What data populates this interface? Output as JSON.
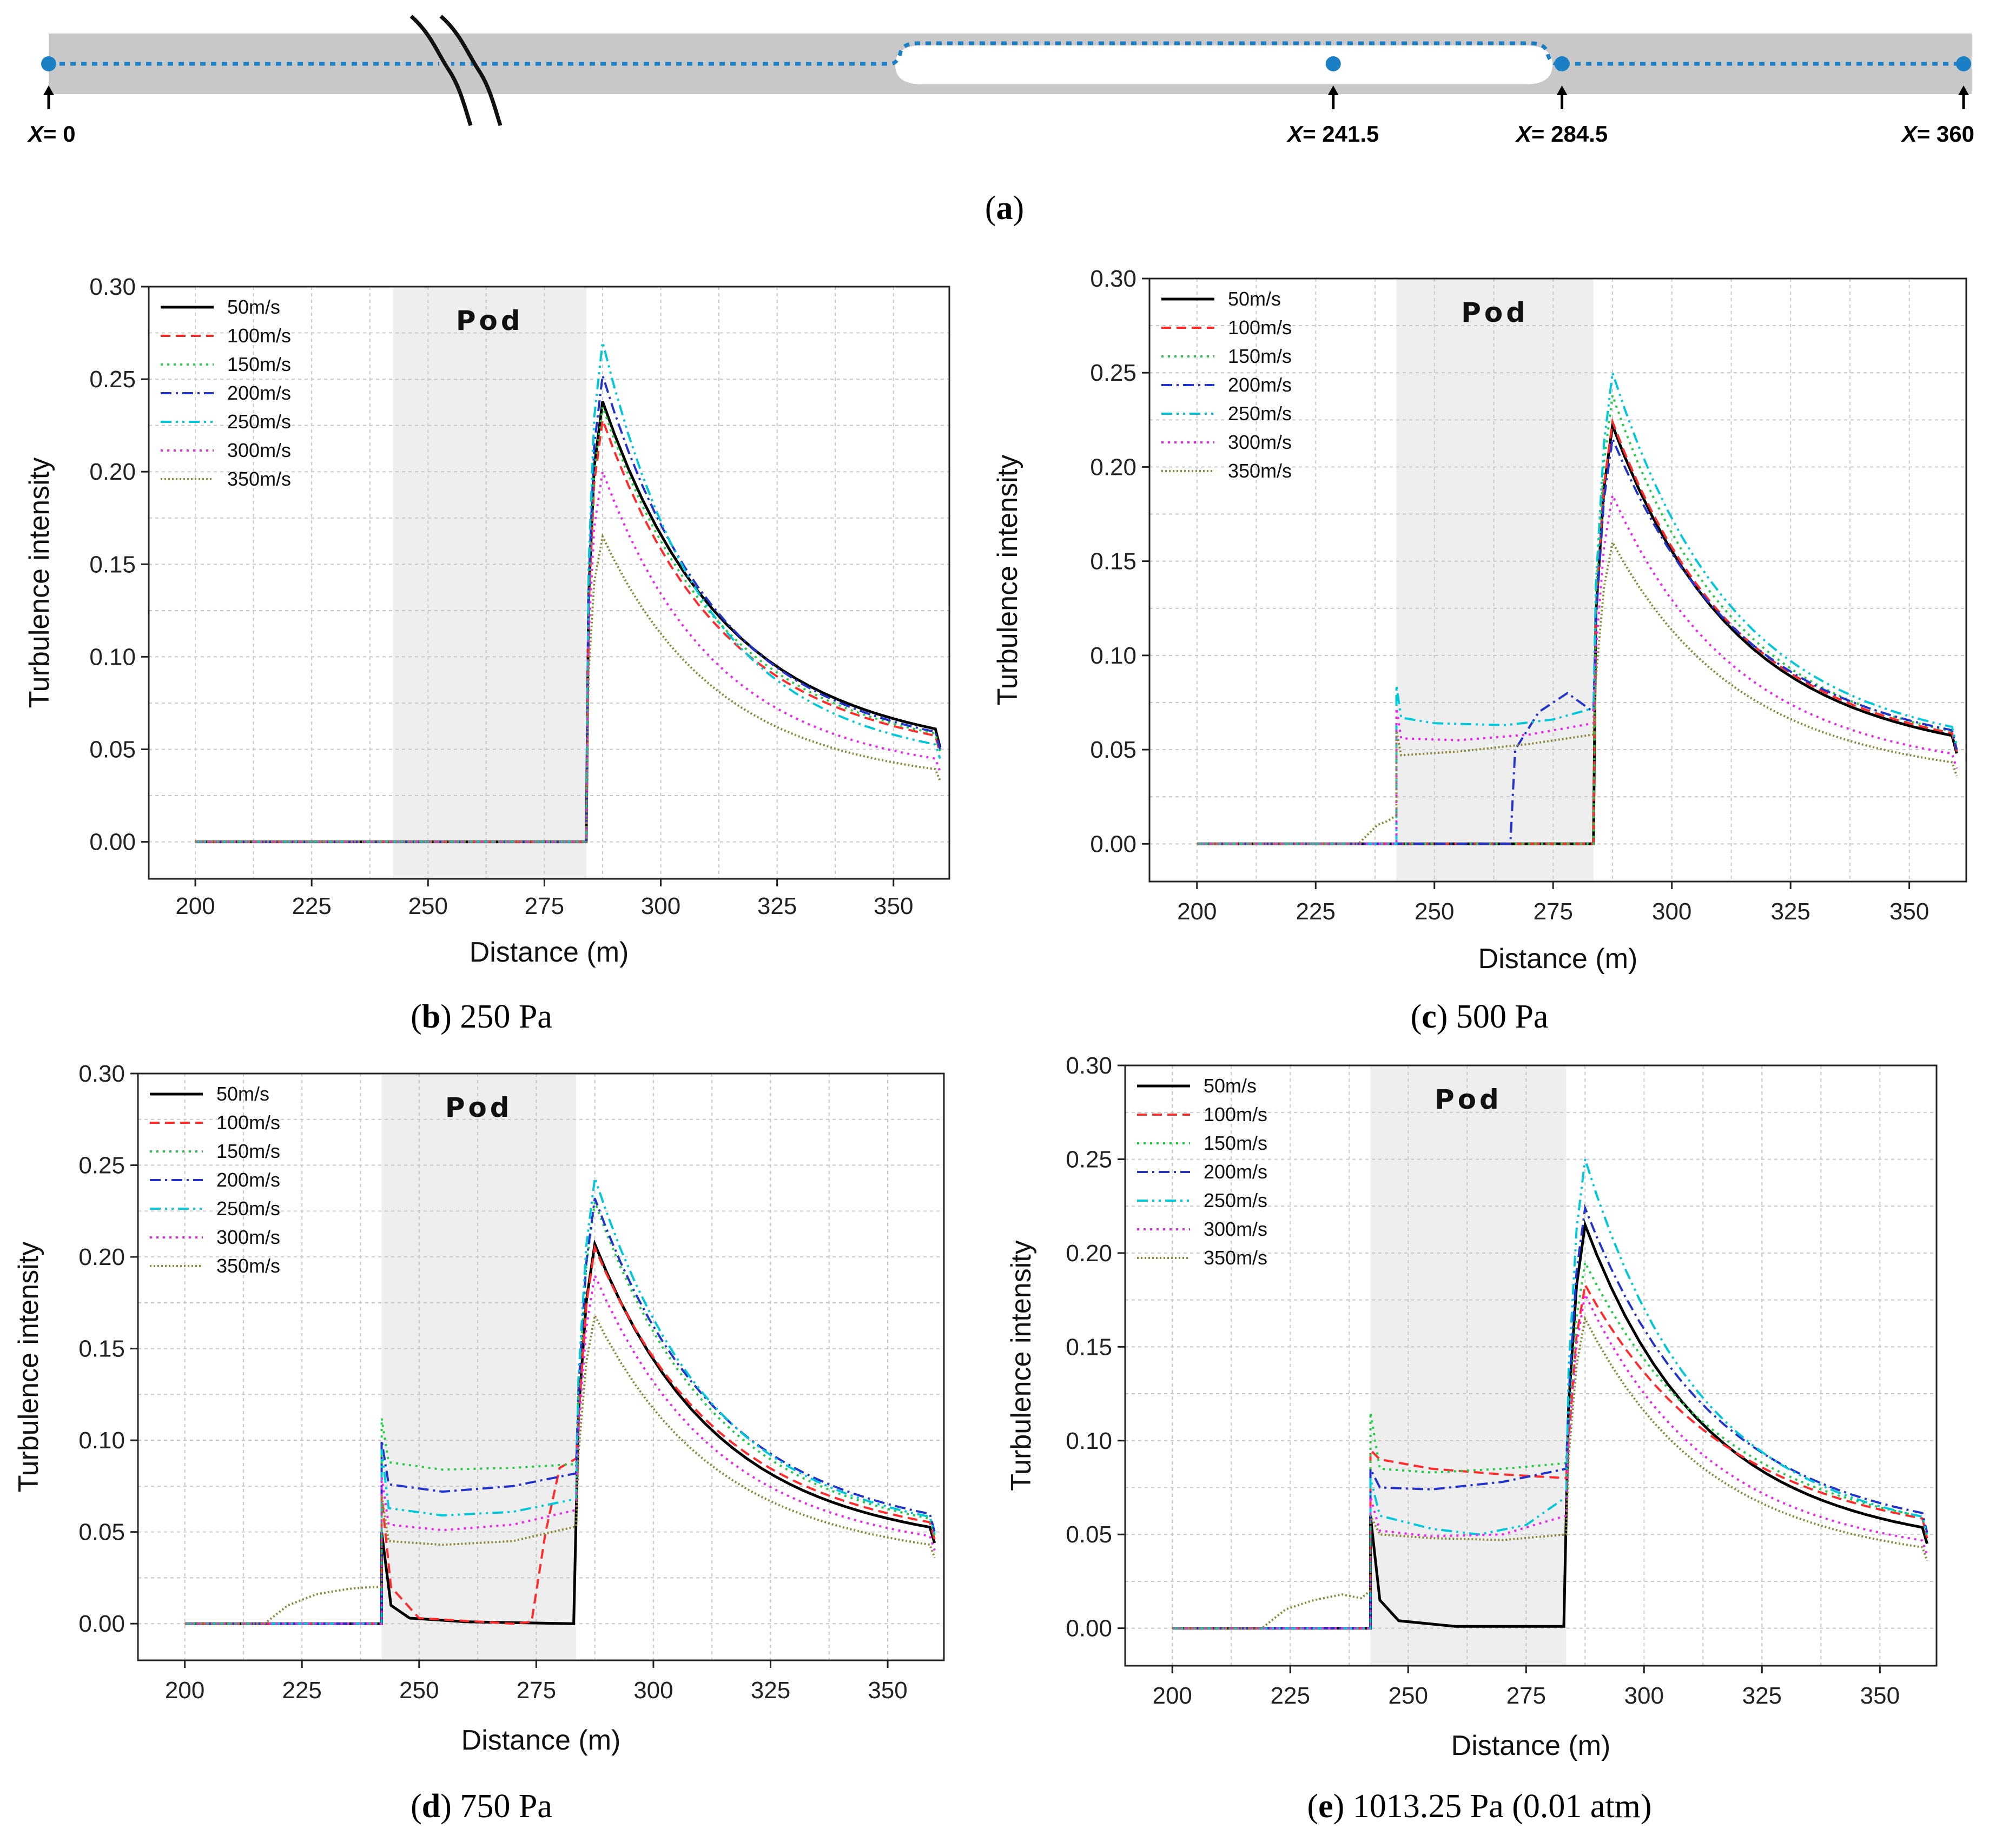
{
  "figure": {
    "captions": {
      "a": {
        "letter": "a",
        "text": ""
      },
      "b": {
        "letter": "b",
        "text": " 250 Pa"
      },
      "c": {
        "letter": "c",
        "text": " 500 Pa"
      },
      "d": {
        "letter": "d",
        "text": " 750 Pa"
      },
      "e": {
        "letter": "e",
        "text": " 1013.25 Pa (0.01 atm)"
      }
    },
    "diagram": {
      "markers": [
        {
          "var": "X",
          "label": "= 0",
          "value": 0
        },
        {
          "var": "X",
          "label": "= 241.5",
          "value": 241.5
        },
        {
          "var": "X",
          "label": "= 284.5",
          "value": 284.5
        },
        {
          "var": "X",
          "label": "= 360",
          "value": 360
        }
      ],
      "colors": {
        "tube": "#c8c8c8",
        "pod": "#ffffff",
        "path": "#1a7fc4",
        "dot": "#1a7fc4"
      }
    }
  },
  "chart_data": [
    {
      "id": "b",
      "type": "line",
      "pressure": "250 Pa",
      "xlabel": "Distance (m)",
      "ylabel": "Turbulence intensity",
      "xlim": [
        190,
        362
      ],
      "ylim": [
        -0.02,
        0.3
      ],
      "xticks": [
        200,
        225,
        250,
        275,
        300,
        325,
        350
      ],
      "yticks": [
        "0.00",
        "0.05",
        "0.10",
        "0.15",
        "0.20",
        "0.25",
        "0.30"
      ],
      "pod_label": "Pod",
      "pod_range": [
        242.5,
        284
      ],
      "legend": [
        "50m/s",
        "100m/s",
        "150m/s",
        "200m/s",
        "250m/s",
        "300m/s",
        "350m/s"
      ],
      "series": [
        {
          "name": "50m/s",
          "color": "#000000",
          "dash": "",
          "peak": 0.238,
          "tail": 0.051,
          "inner": [],
          "pre": []
        },
        {
          "name": "100m/s",
          "color": "#ff2a2a",
          "dash": "18,10",
          "peak": 0.228,
          "tail": 0.048,
          "inner": [],
          "pre": []
        },
        {
          "name": "150m/s",
          "color": "#22cc44",
          "dash": "4,8",
          "peak": 0.235,
          "tail": 0.049,
          "inner": [],
          "pre": []
        },
        {
          "name": "200m/s",
          "color": "#2233cc",
          "dash": "20,8,4,8",
          "peak": 0.252,
          "tail": 0.05,
          "inner": [],
          "pre": []
        },
        {
          "name": "250m/s",
          "color": "#00c8d8",
          "dash": "20,8,4,8,4,8",
          "peak": 0.27,
          "tail": 0.045,
          "inner": [],
          "pre": []
        },
        {
          "name": "300m/s",
          "color": "#ee22ee",
          "dash": "4,8",
          "peak": 0.2,
          "tail": 0.038,
          "inner": [],
          "pre": []
        },
        {
          "name": "350m/s",
          "color": "#8a8a3a",
          "dash": "3,4",
          "peak": 0.165,
          "tail": 0.033,
          "inner": [],
          "pre": []
        }
      ]
    },
    {
      "id": "c",
      "type": "line",
      "pressure": "500 Pa",
      "xlabel": "Distance (m)",
      "ylabel": "Turbulence intensity",
      "xlim": [
        190,
        362
      ],
      "ylim": [
        -0.02,
        0.3
      ],
      "xticks": [
        200,
        225,
        250,
        275,
        300,
        325,
        350
      ],
      "yticks": [
        "0.00",
        "0.05",
        "0.10",
        "0.15",
        "0.20",
        "0.25",
        "0.30"
      ],
      "pod_label": "Pod",
      "pod_range": [
        242,
        283.5
      ],
      "legend": [
        "50m/s",
        "100m/s",
        "150m/s",
        "200m/s",
        "250m/s",
        "300m/s",
        "350m/s"
      ],
      "series": [
        {
          "name": "50m/s",
          "color": "#000000",
          "dash": "",
          "peak": 0.222,
          "tail": 0.048,
          "inner": [],
          "pre": []
        },
        {
          "name": "100m/s",
          "color": "#ff2a2a",
          "dash": "18,10",
          "peak": 0.224,
          "tail": 0.049,
          "inner": [],
          "pre": []
        },
        {
          "name": "150m/s",
          "color": "#22cc44",
          "dash": "4,8",
          "peak": 0.238,
          "tail": 0.05,
          "inner": [],
          "pre": []
        },
        {
          "name": "200m/s",
          "color": "#2233cc",
          "dash": "20,8,4,8",
          "peak": 0.215,
          "tail": 0.05,
          "inner": [
            [
              242,
              0.0
            ],
            [
              266,
              0.0
            ],
            [
              267,
              0.05
            ],
            [
              272,
              0.07
            ],
            [
              278,
              0.08
            ],
            [
              283.5,
              0.07
            ]
          ],
          "pre": []
        },
        {
          "name": "250m/s",
          "color": "#00c8d8",
          "dash": "20,8,4,8,4,8",
          "peak": 0.25,
          "tail": 0.052,
          "inner": [
            [
              242,
              0.084
            ],
            [
              243,
              0.067
            ],
            [
              250,
              0.064
            ],
            [
              265,
              0.063
            ],
            [
              275,
              0.066
            ],
            [
              283.5,
              0.072
            ]
          ],
          "pre": []
        },
        {
          "name": "300m/s",
          "color": "#ee22ee",
          "dash": "4,8",
          "peak": 0.185,
          "tail": 0.04,
          "inner": [
            [
              242,
              0.072
            ],
            [
              243,
              0.056
            ],
            [
              255,
              0.055
            ],
            [
              270,
              0.058
            ],
            [
              283.5,
              0.064
            ]
          ],
          "pre": []
        },
        {
          "name": "350m/s",
          "color": "#8a8a3a",
          "dash": "3,4",
          "peak": 0.16,
          "tail": 0.036,
          "inner": [
            [
              242,
              0.06
            ],
            [
              243,
              0.047
            ],
            [
              255,
              0.049
            ],
            [
              270,
              0.053
            ],
            [
              283.5,
              0.058
            ]
          ],
          "pre": [
            [
              234,
              0.0
            ],
            [
              238,
              0.01
            ],
            [
              240,
              0.012
            ],
            [
              242,
              0.015
            ]
          ]
        }
      ]
    },
    {
      "id": "d",
      "type": "line",
      "pressure": "750 Pa",
      "xlabel": "Distance (m)",
      "ylabel": "Turbulence intensity",
      "xlim": [
        190,
        362
      ],
      "ylim": [
        -0.02,
        0.3
      ],
      "xticks": [
        200,
        225,
        250,
        275,
        300,
        325,
        350
      ],
      "yticks": [
        "0.00",
        "0.05",
        "0.10",
        "0.15",
        "0.20",
        "0.25",
        "0.30"
      ],
      "pod_label": "Pod",
      "pod_range": [
        242,
        283.5
      ],
      "legend": [
        "50m/s",
        "100m/s",
        "150m/s",
        "200m/s",
        "250m/s",
        "300m/s",
        "350m/s"
      ],
      "series": [
        {
          "name": "50m/s",
          "color": "#000000",
          "dash": "",
          "peak": 0.207,
          "tail": 0.044,
          "inner": [
            [
              242,
              0.05
            ],
            [
              244,
              0.01
            ],
            [
              248,
              0.003
            ],
            [
              260,
              0.001
            ],
            [
              283,
              0.0
            ]
          ],
          "pre": []
        },
        {
          "name": "100m/s",
          "color": "#ff2a2a",
          "dash": "18,10",
          "peak": 0.205,
          "tail": 0.046,
          "inner": [
            [
              242,
              0.07
            ],
            [
              244,
              0.02
            ],
            [
              250,
              0.003
            ],
            [
              270,
              0.0
            ],
            [
              274,
              0.001
            ],
            [
              277,
              0.05
            ],
            [
              280,
              0.085
            ],
            [
              283.5,
              0.09
            ]
          ],
          "pre": []
        },
        {
          "name": "150m/s",
          "color": "#22cc44",
          "dash": "4,8",
          "peak": 0.23,
          "tail": 0.048,
          "inner": [
            [
              242,
              0.112
            ],
            [
              243.5,
              0.088
            ],
            [
              255,
              0.084
            ],
            [
              270,
              0.085
            ],
            [
              283.5,
              0.087
            ]
          ],
          "pre": []
        },
        {
          "name": "200m/s",
          "color": "#2233cc",
          "dash": "20,8,4,8",
          "peak": 0.232,
          "tail": 0.05,
          "inner": [
            [
              242,
              0.1
            ],
            [
              243.5,
              0.076
            ],
            [
              255,
              0.072
            ],
            [
              270,
              0.075
            ],
            [
              283.5,
              0.082
            ]
          ],
          "pre": []
        },
        {
          "name": "250m/s",
          "color": "#00c8d8",
          "dash": "20,8,4,8,4,8",
          "peak": 0.243,
          "tail": 0.049,
          "inner": [
            [
              242,
              0.095
            ],
            [
              243.5,
              0.063
            ],
            [
              255,
              0.059
            ],
            [
              270,
              0.061
            ],
            [
              283.5,
              0.068
            ]
          ],
          "pre": []
        },
        {
          "name": "300m/s",
          "color": "#ee22ee",
          "dash": "4,8",
          "peak": 0.19,
          "tail": 0.04,
          "inner": [
            [
              242,
              0.08
            ],
            [
              243.5,
              0.054
            ],
            [
              255,
              0.051
            ],
            [
              270,
              0.054
            ],
            [
              283.5,
              0.062
            ]
          ],
          "pre": []
        },
        {
          "name": "350m/s",
          "color": "#8a8a3a",
          "dash": "3,4",
          "peak": 0.168,
          "tail": 0.036,
          "inner": [
            [
              242,
              0.07
            ],
            [
              243.5,
              0.045
            ],
            [
              255,
              0.043
            ],
            [
              270,
              0.045
            ],
            [
              283.5,
              0.053
            ]
          ],
          "pre": [
            [
              217,
              0.0
            ],
            [
              222,
              0.01
            ],
            [
              228,
              0.016
            ],
            [
              235,
              0.019
            ],
            [
              240,
              0.02
            ],
            [
              242,
              0.02
            ]
          ]
        }
      ]
    },
    {
      "id": "e",
      "type": "line",
      "pressure": "1013.25 Pa (0.01 atm)",
      "xlabel": "Distance (m)",
      "ylabel": "Turbulence intensity",
      "xlim": [
        190,
        362
      ],
      "ylim": [
        -0.02,
        0.3
      ],
      "xticks": [
        200,
        225,
        250,
        275,
        300,
        325,
        350
      ],
      "yticks": [
        "0.00",
        "0.05",
        "0.10",
        "0.15",
        "0.20",
        "0.25",
        "0.30"
      ],
      "pod_label": "Pod",
      "pod_range": [
        242,
        283.5
      ],
      "legend": [
        "50m/s",
        "100m/s",
        "150m/s",
        "200m/s",
        "250m/s",
        "300m/s",
        "350m/s"
      ],
      "series": [
        {
          "name": "50m/s",
          "color": "#000000",
          "dash": "",
          "peak": 0.215,
          "tail": 0.045,
          "inner": [
            [
              242,
              0.06
            ],
            [
              244,
              0.015
            ],
            [
              248,
              0.004
            ],
            [
              260,
              0.001
            ],
            [
              283,
              0.001
            ]
          ],
          "pre": []
        },
        {
          "name": "100m/s",
          "color": "#ff2a2a",
          "dash": "18,10",
          "peak": 0.183,
          "tail": 0.048,
          "inner": [
            [
              242,
              0.095
            ],
            [
              244,
              0.09
            ],
            [
              255,
              0.085
            ],
            [
              270,
              0.082
            ],
            [
              283.5,
              0.08
            ]
          ],
          "pre": []
        },
        {
          "name": "150m/s",
          "color": "#22cc44",
          "dash": "4,8",
          "peak": 0.195,
          "tail": 0.049,
          "inner": [
            [
              242,
              0.115
            ],
            [
              244,
              0.085
            ],
            [
              255,
              0.083
            ],
            [
              270,
              0.085
            ],
            [
              283.5,
              0.088
            ]
          ],
          "pre": []
        },
        {
          "name": "200m/s",
          "color": "#2233cc",
          "dash": "20,8,4,8",
          "peak": 0.224,
          "tail": 0.051,
          "inner": [
            [
              242,
              0.085
            ],
            [
              244,
              0.075
            ],
            [
              255,
              0.074
            ],
            [
              270,
              0.078
            ],
            [
              283.5,
              0.085
            ]
          ],
          "pre": []
        },
        {
          "name": "250m/s",
          "color": "#00c8d8",
          "dash": "20,8,4,8,4,8",
          "peak": 0.25,
          "tail": 0.05,
          "inner": [
            [
              242,
              0.08
            ],
            [
              244,
              0.06
            ],
            [
              255,
              0.053
            ],
            [
              265,
              0.05
            ],
            [
              275,
              0.055
            ],
            [
              283.5,
              0.07
            ]
          ],
          "pre": []
        },
        {
          "name": "300m/s",
          "color": "#ee22ee",
          "dash": "4,8",
          "peak": 0.178,
          "tail": 0.039,
          "inner": [
            [
              242,
              0.07
            ],
            [
              244,
              0.052
            ],
            [
              255,
              0.049
            ],
            [
              270,
              0.05
            ],
            [
              283.5,
              0.06
            ]
          ],
          "pre": []
        },
        {
          "name": "350m/s",
          "color": "#8a8a3a",
          "dash": "3,4",
          "peak": 0.165,
          "tail": 0.036,
          "inner": [
            [
              242,
              0.06
            ],
            [
              244,
              0.05
            ],
            [
              255,
              0.048
            ],
            [
              270,
              0.047
            ],
            [
              283.5,
              0.05
            ]
          ],
          "pre": [
            [
              219,
              0.0
            ],
            [
              224,
              0.01
            ],
            [
              230,
              0.015
            ],
            [
              236,
              0.018
            ],
            [
              240,
              0.016
            ],
            [
              242,
              0.02
            ]
          ]
        }
      ]
    }
  ]
}
